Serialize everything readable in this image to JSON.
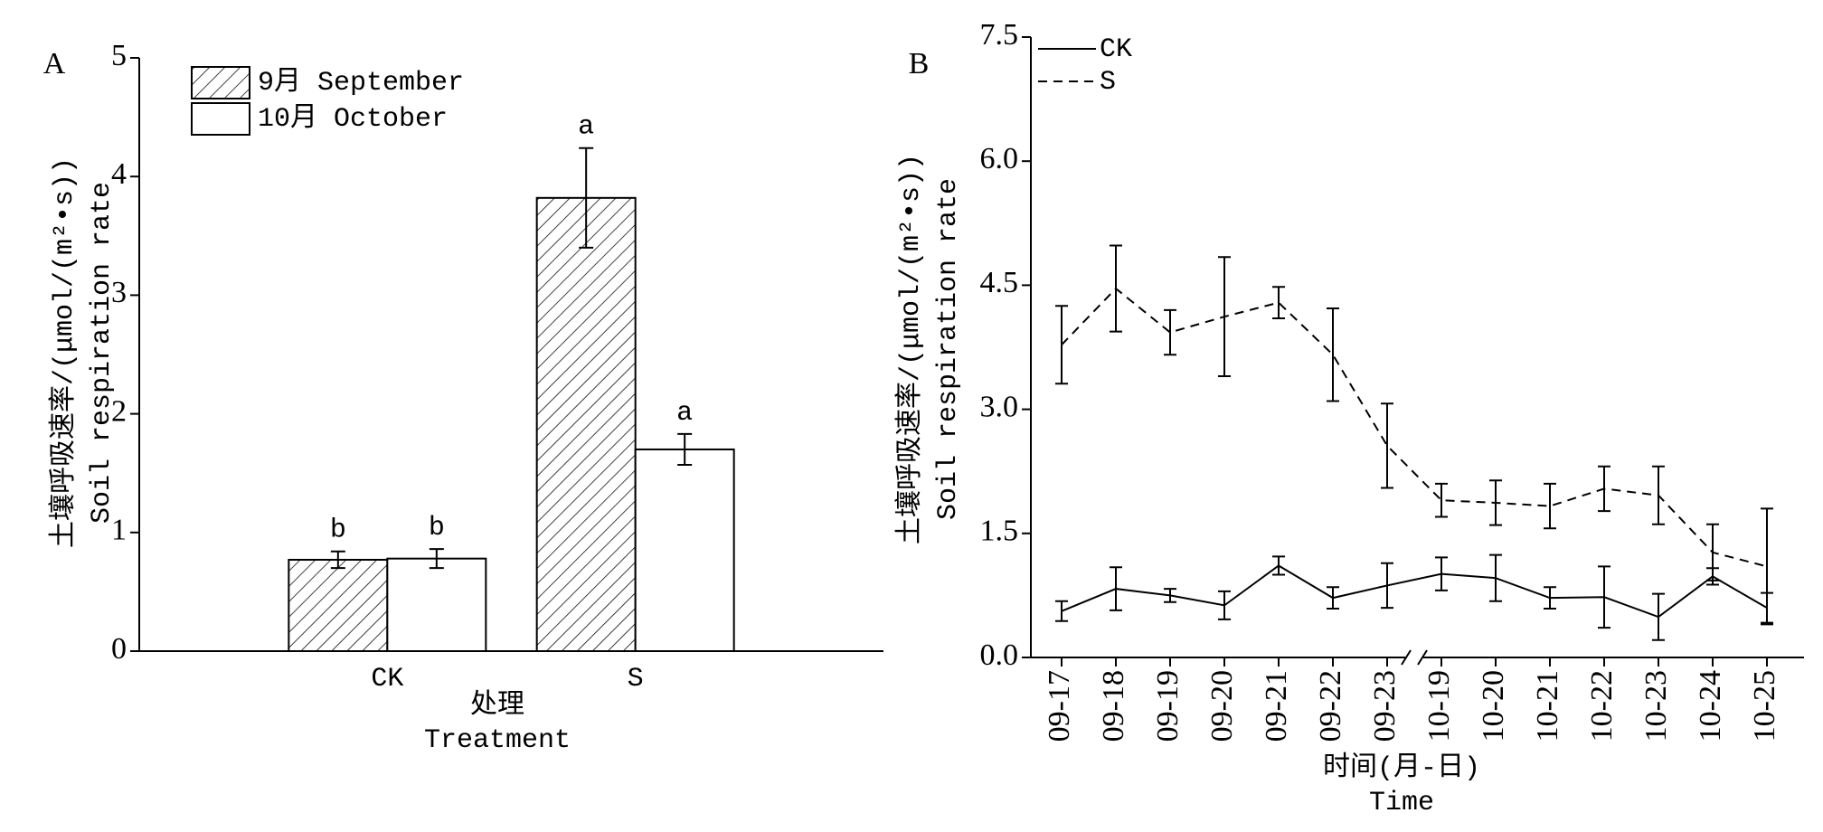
{
  "chart_data": [
    {
      "type": "bar",
      "panel_label": "A",
      "y_label": [
        "土壤呼吸速率/(μmol/(m²•s))",
        "Soil respiration rate"
      ],
      "x_label": [
        "处理",
        "Treatment"
      ],
      "categories": [
        "CK",
        "S"
      ],
      "series": [
        {
          "name": "9月 September",
          "color": "#000000",
          "pattern": "hatch",
          "values": [
            0.77,
            3.82
          ],
          "errors": [
            0.07,
            0.42
          ],
          "letters": [
            "b",
            "a"
          ]
        },
        {
          "name": "10月 October",
          "color": "#000000",
          "pattern": "none",
          "values": [
            0.78,
            1.7
          ],
          "errors": [
            0.08,
            0.13
          ],
          "letters": [
            "b",
            "a"
          ]
        }
      ],
      "ylim": [
        0,
        5
      ],
      "yticks": [
        0,
        1,
        2,
        3,
        4,
        5
      ],
      "legend": "upper left"
    },
    {
      "type": "line",
      "panel_label": "B",
      "y_label": [
        "土壤呼吸速率/(μmol/(m²•s))",
        "Soil respiration rate"
      ],
      "x_label": [
        "时间(月-日)",
        "Time"
      ],
      "categories": [
        "09-17",
        "09-18",
        "09-19",
        "09-20",
        "09-21",
        "09-22",
        "09-23",
        "10-19",
        "10-20",
        "10-21",
        "10-22",
        "10-23",
        "10-24",
        "10-25"
      ],
      "x_break_after": "09-23",
      "series": [
        {
          "name": "CK",
          "color": "#000000",
          "dash": "solid",
          "values": [
            0.56,
            0.83,
            0.75,
            0.63,
            1.11,
            0.72,
            0.87,
            1.01,
            0.96,
            0.72,
            0.73,
            0.49,
            0.98,
            0.6
          ],
          "errors": [
            0.12,
            0.26,
            0.08,
            0.17,
            0.11,
            0.13,
            0.27,
            0.2,
            0.28,
            0.13,
            0.37,
            0.28,
            0.1,
            0.18
          ]
        },
        {
          "name": "S",
          "color": "#000000",
          "dash": "dashed",
          "values": [
            3.78,
            4.46,
            3.93,
            4.12,
            4.29,
            3.66,
            2.56,
            1.9,
            1.87,
            1.83,
            2.04,
            1.96,
            1.27,
            1.1
          ],
          "errors": [
            0.47,
            0.52,
            0.27,
            0.72,
            0.19,
            0.56,
            0.51,
            0.2,
            0.27,
            0.27,
            0.27,
            0.35,
            0.34,
            0.7
          ]
        }
      ],
      "ylim": [
        0,
        7.5
      ],
      "yticks": [
        {
          "value": 0,
          "label": "0.0"
        },
        1.5,
        {
          "value": 3,
          "label": "3.0"
        },
        4.5,
        {
          "value": 6,
          "label": "6.0"
        },
        7.5
      ],
      "legend": "upper left"
    }
  ]
}
